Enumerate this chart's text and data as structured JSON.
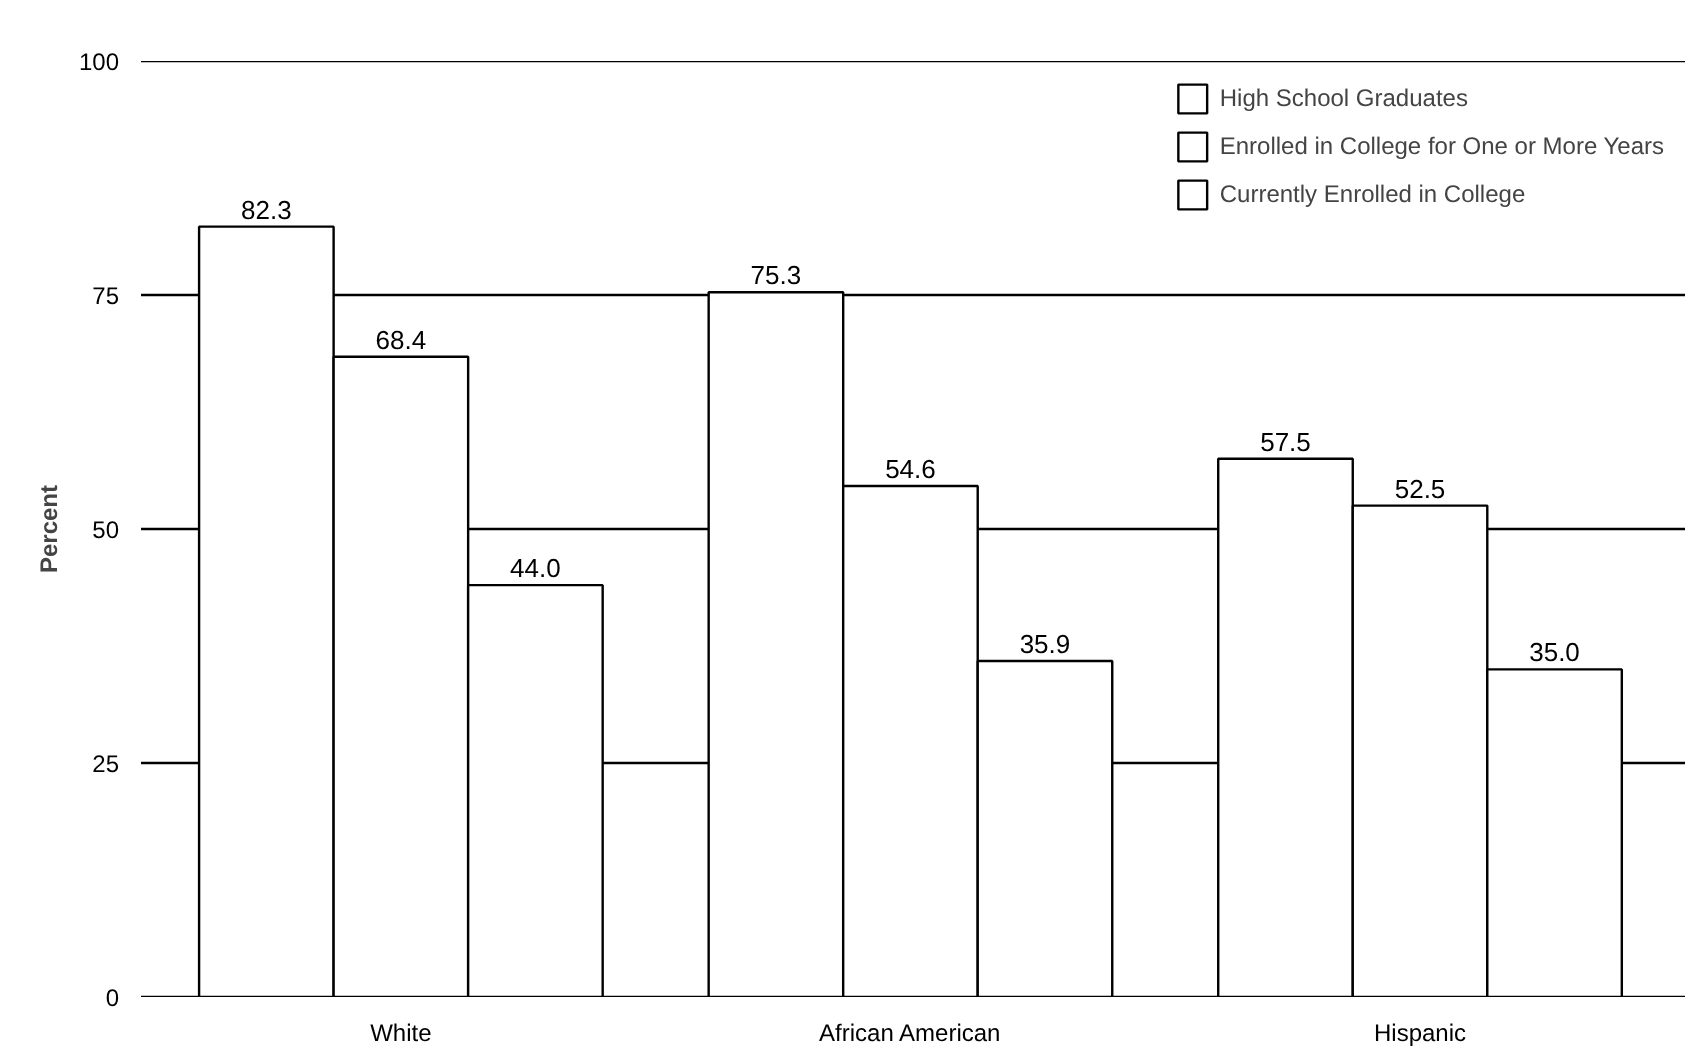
{
  "chart_data": {
    "type": "bar",
    "ylabel": "Percent",
    "categories": [
      "White",
      "African American",
      "Hispanic"
    ],
    "series": [
      {
        "name": "High School Graduates",
        "color": "#ffffff",
        "values": [
          82.3,
          75.3,
          57.5
        ],
        "value_labels": [
          "82.3",
          "75.3",
          "57.5"
        ]
      },
      {
        "name": "Enrolled in College for One or More Years",
        "color": "#ffffff",
        "values": [
          68.4,
          54.6,
          52.5
        ],
        "value_labels": [
          "68.4",
          "54.6",
          "52.5"
        ]
      },
      {
        "name": "Currently Enrolled in College",
        "color": "#ffffff",
        "values": [
          44.0,
          35.9,
          35.0
        ],
        "value_labels": [
          "44.0",
          "35.9",
          "35.0"
        ]
      }
    ],
    "ylim": [
      0,
      100
    ],
    "yticks": [
      0,
      25,
      50,
      75,
      100
    ],
    "grid": "y",
    "legend": "top right"
  }
}
